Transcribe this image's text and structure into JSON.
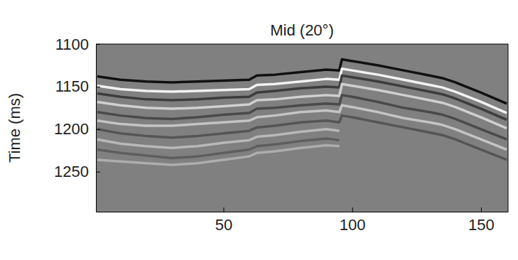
{
  "chart_data": {
    "type": "line",
    "title": "Mid (20°)",
    "y_label": "Time (ms)",
    "x": [
      1,
      10,
      20,
      30,
      40,
      50,
      60,
      63,
      70,
      80,
      90,
      95,
      96,
      100,
      110,
      120,
      130,
      135,
      140,
      150,
      160
    ],
    "xlim": [
      0.5,
      160.5
    ],
    "xticks": [
      50,
      100,
      150
    ],
    "ylim": [
      1100,
      1297
    ],
    "yticks": [
      1100,
      1150,
      1200,
      1250
    ],
    "grid": false,
    "series": [
      {
        "color": "#111111",
        "values": [
          1138,
          1142,
          1144,
          1145,
          1144,
          1143,
          1142,
          1137,
          1136,
          1133,
          1130,
          1131,
          1118,
          1120,
          1125,
          1131,
          1137,
          1140,
          1145,
          1157,
          1170
        ]
      },
      {
        "color": "#f2f2f2",
        "values": [
          1149,
          1153,
          1155,
          1156,
          1155,
          1154,
          1153,
          1148,
          1147,
          1144,
          1141,
          1142,
          1129,
          1131,
          1136,
          1142,
          1148,
          1151,
          1156,
          1168,
          1181
        ]
      },
      {
        "color": "#3c3c3c",
        "values": [
          1158,
          1162,
          1165,
          1166,
          1165,
          1163,
          1162,
          1157,
          1155,
          1152,
          1150,
          1151,
          1137,
          1139,
          1144,
          1150,
          1156,
          1159,
          1164,
          1176,
          1189
        ]
      },
      {
        "color": "#d0d0d0",
        "values": [
          1168,
          1172,
          1175,
          1176,
          1175,
          1173,
          1171,
          1166,
          1165,
          1162,
          1160,
          1161,
          1147,
          1149,
          1154,
          1160,
          1166,
          1169,
          1174,
          1186,
          1199
        ]
      },
      {
        "color": "#4a4a4a",
        "values": [
          1180,
          1184,
          1187,
          1188,
          1186,
          1183,
          1181,
          1176,
          1175,
          1172,
          1170,
          1171,
          1160,
          1162,
          1168,
          1175,
          1180,
          1183,
          1188,
          1200,
          1212
        ]
      },
      {
        "color": "#c4c4c4",
        "values": [
          1190,
          1194,
          1196,
          1196,
          1194,
          1192,
          1190,
          1186,
          1184,
          1180,
          1178,
          1180,
          1172,
          1174,
          1180,
          1187,
          1192,
          1195,
          1200,
          1212,
          1224
        ]
      },
      {
        "color": "#555555",
        "values": [
          1200,
          1205,
          1208,
          1210,
          1208,
          1205,
          1202,
          1198,
          1196,
          1192,
          1190,
          1192,
          1184,
          1186,
          1192,
          1198,
          1204,
          1207,
          1212,
          1224,
          1236
        ]
      },
      {
        "color": "#b8b8b8",
        "values": [
          1212,
          1217,
          1220,
          1222,
          1220,
          1216,
          1213,
          1209,
          1207,
          1203,
          1200,
          1202,
          null,
          null,
          null,
          null,
          null,
          null,
          null,
          null,
          null
        ]
      },
      {
        "color": "#5e5e5e",
        "values": [
          1224,
          1228,
          1231,
          1234,
          1232,
          1228,
          1224,
          1220,
          1218,
          1214,
          1211,
          1213,
          null,
          null,
          null,
          null,
          null,
          null,
          null,
          null,
          null
        ]
      },
      {
        "color": "#adadad",
        "values": [
          1236,
          1238,
          1240,
          1242,
          1240,
          1236,
          1232,
          1228,
          1226,
          1222,
          1219,
          1220,
          null,
          null,
          null,
          null,
          null,
          null,
          null,
          null,
          null
        ]
      }
    ]
  }
}
